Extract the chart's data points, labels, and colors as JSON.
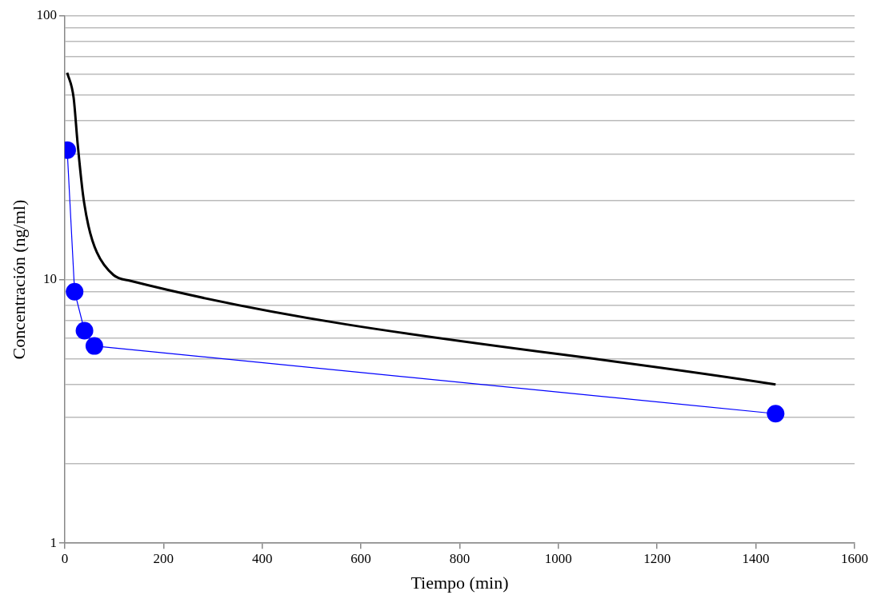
{
  "chart_data": {
    "type": "line",
    "xlabel": "Tiempo (min)",
    "ylabel": "Concentración (ng/ml)",
    "log": "y",
    "grid": "y",
    "legend": false,
    "xlim": [
      0,
      1600
    ],
    "xticks": [
      0,
      200,
      400,
      600,
      800,
      1000,
      1200,
      1400,
      1600
    ],
    "ylim": [
      1,
      100
    ],
    "yticks": [
      1,
      {
        "value": 2,
        "label": null
      },
      {
        "value": 3,
        "label": null
      },
      {
        "value": 4,
        "label": null
      },
      {
        "value": 5,
        "label": null
      },
      {
        "value": 6,
        "label": null
      },
      {
        "value": 7,
        "label": null
      },
      {
        "value": 8,
        "label": null
      },
      {
        "value": 9,
        "label": null
      },
      10,
      {
        "value": 20,
        "label": null
      },
      {
        "value": 30,
        "label": null
      },
      {
        "value": 40,
        "label": null
      },
      {
        "value": 50,
        "label": null
      },
      {
        "value": 60,
        "label": null
      },
      {
        "value": 70,
        "label": null
      },
      {
        "value": 80,
        "label": null
      },
      {
        "value": 90,
        "label": null
      },
      100
    ],
    "series": [
      {
        "color": "#0000ff",
        "marker": "circle",
        "x": [
          5,
          20,
          40,
          60,
          1440
        ],
        "values": [
          31,
          9,
          6.4,
          5.6,
          3.1
        ]
      },
      {
        "color": "#000000",
        "marker": "none",
        "x": [
          5,
          18,
          26,
          37,
          48,
          65,
          99,
          132,
          1440
        ],
        "values": [
          61,
          49,
          33,
          21,
          16,
          12.7,
          10.4,
          9.9,
          4
        ]
      }
    ]
  }
}
